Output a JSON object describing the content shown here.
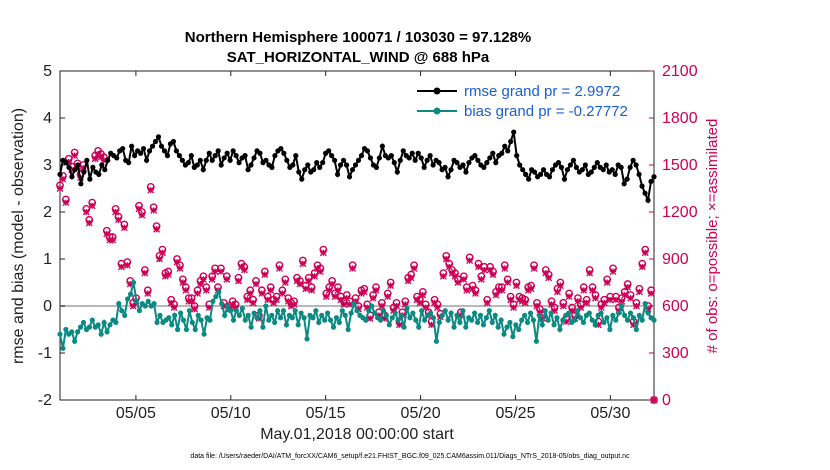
{
  "chart_data": {
    "type": "line",
    "title": "Northern Hemisphere 100071 / 103030 = 97.128%",
    "subtitle": "SAT_HORIZONTAL_WIND @ 688 hPa",
    "xlabel": "May.01,2018 00:00:00 start",
    "ylabel": "rmse and bias (model - observation)",
    "y2label": "# of obs: o=possible; ×=assimilated",
    "xlim": [
      1,
      32.3
    ],
    "ylim": [
      -2,
      5
    ],
    "y2lim": [
      0,
      2100
    ],
    "x_tick_labels": [
      "05/05",
      "05/10",
      "05/15",
      "05/20",
      "05/25",
      "05/30"
    ],
    "y_tick_labels": [
      "-2",
      "-1",
      "0",
      "1",
      "2",
      "3",
      "4",
      "5"
    ],
    "y2_tick_labels": [
      "0",
      "300",
      "600",
      "900",
      "1200",
      "1500",
      "1800",
      "2100"
    ],
    "legend_position": "top-right",
    "footnote": "data file: /Users/raeder/DAI/ATM_forcXX/CAM6_setup/f.e21.FHIST_BGC.f09_025.CAM6assim.011/Diags_NTrS_2018-05/obs_diag_output.nc",
    "colors": {
      "rmse": "#000000",
      "bias": "#0b8a83",
      "obs": "#cc0055",
      "zero": "#b8b8b8"
    },
    "series": [
      {
        "name": "rmse grand pr = 2.9972",
        "axis": "left",
        "marker": "o-filled",
        "values": [
          2.8,
          3.1,
          3.05,
          2.95,
          2.75,
          2.9,
          3.0,
          2.6,
          2.85,
          3.1,
          2.7,
          2.95,
          2.85,
          2.8,
          3.0,
          2.9,
          3.1,
          3.25,
          3.2,
          3.15,
          3.3,
          3.35,
          3.1,
          3.05,
          3.4,
          3.2,
          3.3,
          3.25,
          3.35,
          3.1,
          3.3,
          3.4,
          3.5,
          3.6,
          3.4,
          3.3,
          3.2,
          3.45,
          3.5,
          3.3,
          3.2,
          3.1,
          3.0,
          3.05,
          3.2,
          2.95,
          3.0,
          3.1,
          2.9,
          3.1,
          3.25,
          3.1,
          3.2,
          3.3,
          3.0,
          3.15,
          3.25,
          3.1,
          3.3,
          3.2,
          3.05,
          3.15,
          3.2,
          2.9,
          3.0,
          3.15,
          3.3,
          3.25,
          3.05,
          3.1,
          3.0,
          2.95,
          3.2,
          3.3,
          3.35,
          3.25,
          3.1,
          2.95,
          3.0,
          3.2,
          2.85,
          2.7,
          2.9,
          3.0,
          2.85,
          2.9,
          3.05,
          2.95,
          3.05,
          3.25,
          3.3,
          3.2,
          3.1,
          2.8,
          3.0,
          3.1,
          3.0,
          2.75,
          2.9,
          3.0,
          3.1,
          3.2,
          3.35,
          3.3,
          3.15,
          3.0,
          2.95,
          3.15,
          3.4,
          3.2,
          3.15,
          3.2,
          3.05,
          2.85,
          3.1,
          3.3,
          3.2,
          3.15,
          3.25,
          3.1,
          3.25,
          3.15,
          2.95,
          3.1,
          3.2,
          3.0,
          3.1,
          3.05,
          2.9,
          2.95,
          2.75,
          2.9,
          3.1,
          3.05,
          2.95,
          3.0,
          2.85,
          3.05,
          3.15,
          3.2,
          3.1,
          3.0,
          2.95,
          3.05,
          3.15,
          3.25,
          3.05,
          3.2,
          3.25,
          3.4,
          3.3,
          3.5,
          3.7,
          3.2,
          3.0,
          2.9,
          2.8,
          2.7,
          2.9,
          2.85,
          2.75,
          2.8,
          2.9,
          2.8,
          2.75,
          2.9,
          3.0,
          3.05,
          2.95,
          2.7,
          2.9,
          3.0,
          3.1,
          2.95,
          2.85,
          2.9,
          3.0,
          2.8,
          2.85,
          2.95,
          3.05,
          2.95,
          2.9,
          3.0,
          2.85,
          2.9,
          2.8,
          3.0,
          2.95,
          2.6,
          2.7,
          2.95,
          3.1,
          3.0,
          2.8,
          2.55,
          2.4,
          2.25,
          2.65,
          2.75
        ]
      },
      {
        "name": "bias grand pr = -0.27772",
        "axis": "left",
        "marker": "o-filled",
        "values": [
          -0.6,
          -0.9,
          -0.5,
          -0.6,
          -0.55,
          -0.75,
          -0.55,
          -0.45,
          -0.35,
          -0.5,
          -0.45,
          -0.3,
          -0.45,
          -0.4,
          -0.6,
          -0.35,
          -0.55,
          -0.4,
          -0.3,
          -0.35,
          0.05,
          -0.1,
          -0.2,
          0.15,
          0.25,
          0.5,
          0.1,
          -0.1,
          0.05,
          0.0,
          0.1,
          0.0,
          0.05,
          -0.35,
          -0.2,
          -0.35,
          -0.3,
          -0.25,
          -0.4,
          -0.2,
          -0.5,
          -0.15,
          -0.3,
          -0.5,
          -0.1,
          -0.35,
          -0.5,
          -0.2,
          -0.3,
          -0.6,
          -0.25,
          -0.3,
          0.1,
          0.2,
          0.3,
          0.05,
          -0.2,
          0.0,
          -0.1,
          -0.3,
          -0.1,
          -0.2,
          -0.05,
          -0.3,
          -0.2,
          -0.45,
          -0.15,
          -0.25,
          -0.1,
          -0.45,
          0.0,
          -0.3,
          -0.2,
          -0.35,
          -0.1,
          -0.25,
          -0.1,
          -0.4,
          -0.2,
          -0.25,
          -0.1,
          -0.4,
          -0.15,
          -0.25,
          -0.7,
          -0.2,
          -0.25,
          -0.1,
          -0.35,
          -0.2,
          -0.3,
          -0.15,
          -0.3,
          -0.45,
          -0.25,
          -0.35,
          -0.1,
          -0.2,
          -0.5,
          -0.15,
          0.05,
          -0.1,
          -0.2,
          -0.25,
          -0.3,
          -0.1,
          0.0,
          -0.15,
          -0.25,
          -0.3,
          -0.1,
          -0.2,
          -0.4,
          -0.25,
          -0.15,
          -0.3,
          -0.2,
          -0.45,
          -0.05,
          -0.25,
          -0.15,
          -0.3,
          -0.45,
          -0.1,
          -0.3,
          -0.2,
          -0.15,
          -0.25,
          -0.75,
          -0.35,
          -0.2,
          -0.1,
          -0.3,
          -0.15,
          -0.45,
          -0.2,
          -0.35,
          -0.1,
          -0.45,
          -0.25,
          -0.3,
          -0.15,
          -0.35,
          -0.2,
          -0.4,
          -0.25,
          -0.1,
          -0.35,
          -0.2,
          -0.45,
          -0.3,
          -0.6,
          -0.45,
          -0.35,
          -0.65,
          -0.4,
          -0.5,
          -0.3,
          -0.2,
          -0.35,
          -0.15,
          -0.3,
          -0.75,
          -0.2,
          -0.4,
          -0.1,
          -0.3,
          -0.15,
          -0.4,
          -0.25,
          -0.5,
          -0.3,
          -0.2,
          -0.15,
          -0.35,
          -0.3,
          -0.1,
          -0.25,
          -0.35,
          -0.2,
          -0.15,
          -0.3,
          -0.4,
          -0.2,
          -0.15,
          -0.35,
          -0.25,
          -0.5,
          -0.2,
          -0.3,
          -0.15,
          0.0,
          -0.2,
          -0.3,
          -0.15,
          -0.25,
          -0.5,
          -0.2,
          -0.3,
          0.05,
          -0.15,
          -0.25,
          -0.3
        ]
      },
      {
        "name": "possible",
        "axis": "right",
        "marker": "o-open",
        "values": [
          1370,
          1430,
          1280,
          1540,
          1490,
          1580,
          1510,
          1440,
          1500,
          1220,
          1150,
          1260,
          1560,
          1590,
          1570,
          1550,
          1080,
          1040,
          1040,
          1220,
          1170,
          870,
          1120,
          880,
          760,
          620,
          650,
          1240,
          1200,
          830,
          700,
          1360,
          1230,
          1110,
          920,
          960,
          810,
          820,
          640,
          610,
          900,
          860,
          770,
          720,
          650,
          650,
          600,
          700,
          760,
          790,
          720,
          610,
          790,
          840,
          720,
          840,
          620,
          790,
          600,
          630,
          610,
          780,
          870,
          850,
          660,
          700,
          640,
          760,
          540,
          700,
          820,
          660,
          720,
          640,
          660,
          860,
          700,
          770,
          650,
          620,
          630,
          780,
          760,
          890,
          730,
          780,
          720,
          810,
          860,
          840,
          960,
          680,
          720,
          760,
          680,
          720,
          660,
          630,
          670,
          630,
          860,
          650,
          600,
          700,
          710,
          610,
          540,
          670,
          720,
          560,
          620,
          540,
          680,
          750,
          590,
          620,
          500,
          560,
          630,
          780,
          800,
          860,
          660,
          640,
          690,
          610,
          560,
          500,
          640,
          610,
          550,
          810,
          920,
          870,
          830,
          810,
          770,
          560,
          790,
          720,
          910,
          730,
          700,
          870,
          790,
          850,
          640,
          850,
          820,
          690,
          720,
          720,
          860,
          770,
          660,
          610,
          750,
          660,
          650,
          640,
          720,
          730,
          860,
          620,
          580,
          540,
          830,
          800,
          630,
          590,
          710,
          750,
          620,
          520,
          680,
          590,
          540,
          650,
          610,
          720,
          640,
          830,
          720,
          670,
          500,
          610,
          640,
          770,
          660,
          840,
          660,
          590,
          650,
          690,
          740,
          670,
          500,
          620,
          710,
          870,
          960,
          600,
          700,
          0
        ]
      },
      {
        "name": "assimilated",
        "axis": "right",
        "marker": "x",
        "values": [
          1350,
          1410,
          1260,
          1520,
          1470,
          1560,
          1490,
          1420,
          1480,
          1200,
          1130,
          1240,
          1540,
          1570,
          1550,
          1530,
          1060,
          1020,
          1020,
          1200,
          1150,
          850,
          1100,
          860,
          740,
          600,
          630,
          1220,
          1180,
          810,
          680,
          1340,
          1210,
          1090,
          900,
          940,
          790,
          800,
          620,
          590,
          880,
          840,
          750,
          700,
          630,
          630,
          580,
          680,
          740,
          770,
          700,
          590,
          770,
          820,
          700,
          820,
          600,
          770,
          580,
          610,
          590,
          760,
          850,
          830,
          640,
          680,
          620,
          740,
          520,
          680,
          800,
          640,
          700,
          620,
          640,
          840,
          680,
          750,
          630,
          600,
          610,
          760,
          740,
          870,
          710,
          760,
          700,
          790,
          840,
          820,
          940,
          660,
          700,
          740,
          660,
          700,
          640,
          610,
          650,
          610,
          840,
          630,
          580,
          680,
          690,
          590,
          520,
          650,
          700,
          540,
          600,
          520,
          660,
          730,
          570,
          600,
          480,
          540,
          610,
          760,
          780,
          840,
          640,
          620,
          670,
          590,
          540,
          480,
          620,
          590,
          530,
          790,
          900,
          850,
          810,
          790,
          750,
          540,
          770,
          700,
          890,
          710,
          680,
          850,
          770,
          830,
          620,
          830,
          800,
          670,
          700,
          700,
          840,
          750,
          640,
          590,
          730,
          640,
          630,
          620,
          700,
          710,
          840,
          600,
          560,
          520,
          810,
          780,
          610,
          570,
          690,
          730,
          600,
          500,
          660,
          570,
          520,
          630,
          590,
          700,
          620,
          810,
          700,
          650,
          480,
          590,
          620,
          750,
          640,
          820,
          640,
          570,
          630,
          670,
          720,
          650,
          480,
          600,
          690,
          850,
          940,
          580,
          680,
          0
        ]
      }
    ]
  }
}
